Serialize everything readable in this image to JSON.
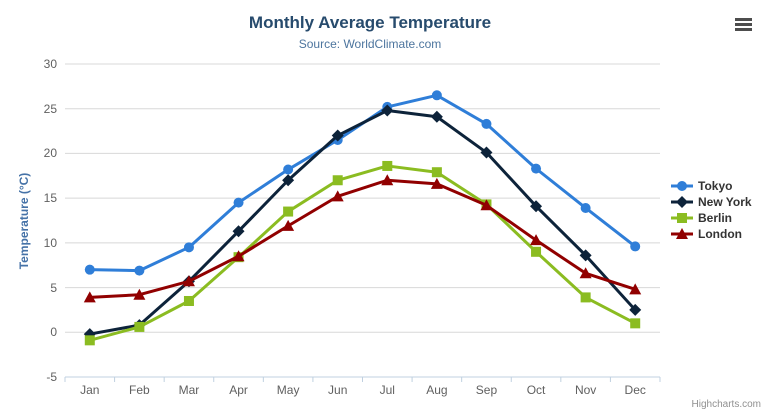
{
  "chart": {
    "title": "Monthly Average Temperature",
    "subtitle": "Source: WorldClimate.com",
    "y_axis_title": "Temperature (°C)",
    "credits": "Highcharts.com",
    "menu_icon": "hamburger-icon",
    "theme": {
      "title_color": "#274b6d",
      "subtitle_color": "#4d759e",
      "axis_title_color": "#4572a7",
      "axis_label_color": "#606060",
      "grid_color": "#d8d8d8",
      "axis_line_color": "#c0d0e0",
      "legend_text_color": "#333333",
      "credits_color": "#909090",
      "background": "#ffffff"
    }
  },
  "chart_data": {
    "type": "line",
    "title": "Monthly Average Temperature",
    "subtitle": "Source: WorldClimate.com",
    "xlabel": "",
    "ylabel": "Temperature (°C)",
    "categories": [
      "Jan",
      "Feb",
      "Mar",
      "Apr",
      "May",
      "Jun",
      "Jul",
      "Aug",
      "Sep",
      "Oct",
      "Nov",
      "Dec"
    ],
    "ylim": [
      -5,
      30
    ],
    "yticks": [
      -5,
      0,
      5,
      10,
      15,
      20,
      25,
      30
    ],
    "grid": true,
    "legend_position": "right",
    "series": [
      {
        "name": "Tokyo",
        "color": "#2f7ed8",
        "marker": "circle",
        "values": [
          7.0,
          6.9,
          9.5,
          14.5,
          18.2,
          21.5,
          25.2,
          26.5,
          23.3,
          18.3,
          13.9,
          9.6
        ]
      },
      {
        "name": "New York",
        "color": "#0d233a",
        "marker": "diamond",
        "values": [
          -0.2,
          0.8,
          5.7,
          11.3,
          17.0,
          22.0,
          24.8,
          24.1,
          20.1,
          14.1,
          8.6,
          2.5
        ]
      },
      {
        "name": "Berlin",
        "color": "#8bbc21",
        "marker": "square",
        "values": [
          -0.9,
          0.6,
          3.5,
          8.4,
          13.5,
          17.0,
          18.6,
          17.9,
          14.3,
          9.0,
          3.9,
          1.0
        ]
      },
      {
        "name": "London",
        "color": "#910000",
        "marker": "triangle",
        "values": [
          3.9,
          4.2,
          5.7,
          8.5,
          11.9,
          15.2,
          17.0,
          16.6,
          14.2,
          10.3,
          6.6,
          4.8
        ]
      }
    ]
  }
}
